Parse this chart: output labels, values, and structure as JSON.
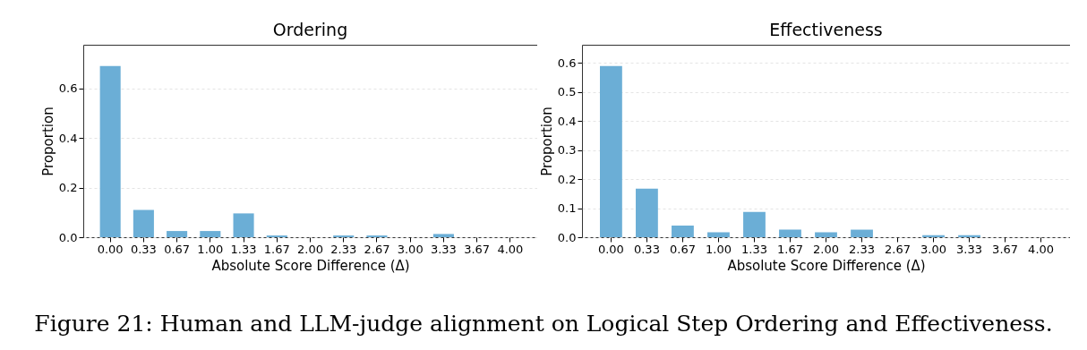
{
  "chart_data": [
    {
      "type": "bar",
      "title": "Ordering",
      "xlabel": "Absolute Score Difference (Δ)",
      "ylabel": "Proportion",
      "categories": [
        "0.00",
        "0.33",
        "0.67",
        "1.00",
        "1.33",
        "1.67",
        "2.00",
        "2.33",
        "2.67",
        "3.00",
        "3.33",
        "3.67",
        "4.00"
      ],
      "values": [
        0.69,
        0.11,
        0.025,
        0.025,
        0.096,
        0.007,
        0,
        0.007,
        0.007,
        0,
        0.013,
        0,
        0
      ],
      "color": "#6baed6",
      "ylim": [
        0,
        0.776
      ],
      "yticks": [
        {
          "value": 0,
          "label": "0.0"
        },
        0.2,
        0.4,
        0.6
      ],
      "grid": "y",
      "annotations": [
        "Figure 21: Human and LLM-judge alignment on Logical Step Ordering and Effectiveness."
      ]
    },
    {
      "type": "bar",
      "title": "Effectiveness",
      "xlabel": "Absolute Score Difference (Δ)",
      "ylabel": "Proportion",
      "categories": [
        "0.00",
        "0.33",
        "0.67",
        "1.00",
        "1.33",
        "1.67",
        "2.00",
        "2.33",
        "2.67",
        "3.00",
        "3.33",
        "3.67",
        "4.00"
      ],
      "values": [
        0.589,
        0.167,
        0.04,
        0.017,
        0.087,
        0.026,
        0.017,
        0.026,
        0,
        0.007,
        0.007,
        0,
        0
      ],
      "color": "#6baed6",
      "ylim": [
        0,
        0.662
      ],
      "yticks": [
        {
          "value": 0,
          "label": "0.0"
        },
        0.1,
        0.2,
        0.3,
        0.4,
        0.5,
        0.6
      ],
      "grid": "y"
    }
  ]
}
